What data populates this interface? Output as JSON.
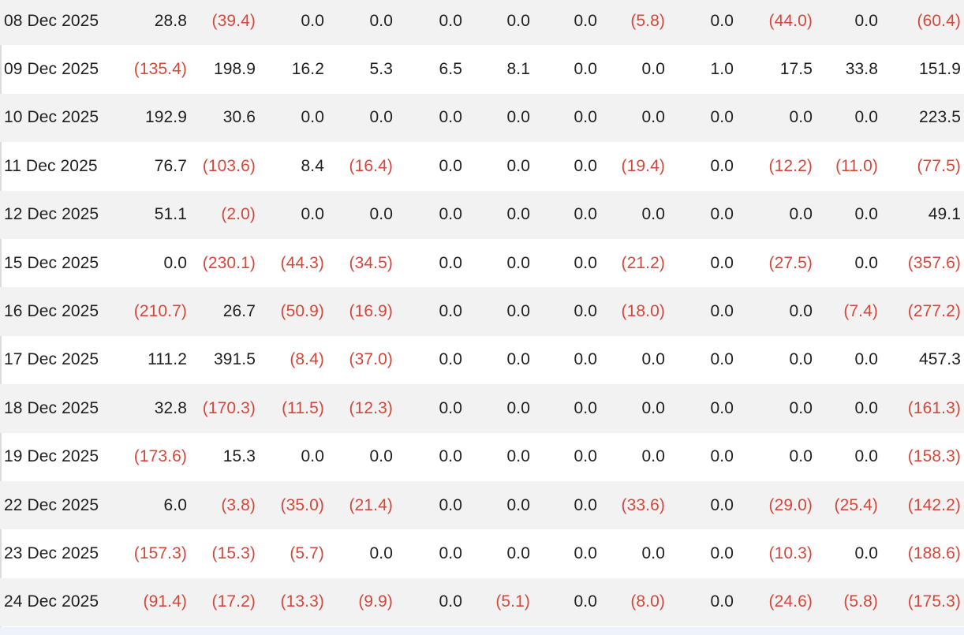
{
  "colors": {
    "negative": "#d4483c",
    "positive": "#1f1f1f",
    "row_alt": "#f2f2f2",
    "footer": "#eef2fb"
  },
  "table": {
    "rows": [
      {
        "date": "08 Dec 2025",
        "values": [
          "28.8",
          "(39.4)",
          "0.0",
          "0.0",
          "0.0",
          "0.0",
          "0.0",
          "(5.8)",
          "0.0",
          "(44.0)",
          "0.0",
          "(60.4)"
        ]
      },
      {
        "date": "09 Dec 2025",
        "values": [
          "(135.4)",
          "198.9",
          "16.2",
          "5.3",
          "6.5",
          "8.1",
          "0.0",
          "0.0",
          "1.0",
          "17.5",
          "33.8",
          "151.9"
        ]
      },
      {
        "date": "10 Dec 2025",
        "values": [
          "192.9",
          "30.6",
          "0.0",
          "0.0",
          "0.0",
          "0.0",
          "0.0",
          "0.0",
          "0.0",
          "0.0",
          "0.0",
          "223.5"
        ]
      },
      {
        "date": "11 Dec 2025",
        "values": [
          "76.7",
          "(103.6)",
          "8.4",
          "(16.4)",
          "0.0",
          "0.0",
          "0.0",
          "(19.4)",
          "0.0",
          "(12.2)",
          "(11.0)",
          "(77.5)"
        ]
      },
      {
        "date": "12 Dec 2025",
        "values": [
          "51.1",
          "(2.0)",
          "0.0",
          "0.0",
          "0.0",
          "0.0",
          "0.0",
          "0.0",
          "0.0",
          "0.0",
          "0.0",
          "49.1"
        ]
      },
      {
        "date": "15 Dec 2025",
        "values": [
          "0.0",
          "(230.1)",
          "(44.3)",
          "(34.5)",
          "0.0",
          "0.0",
          "0.0",
          "(21.2)",
          "0.0",
          "(27.5)",
          "0.0",
          "(357.6)"
        ]
      },
      {
        "date": "16 Dec 2025",
        "values": [
          "(210.7)",
          "26.7",
          "(50.9)",
          "(16.9)",
          "0.0",
          "0.0",
          "0.0",
          "(18.0)",
          "0.0",
          "0.0",
          "(7.4)",
          "(277.2)"
        ]
      },
      {
        "date": "17 Dec 2025",
        "values": [
          "111.2",
          "391.5",
          "(8.4)",
          "(37.0)",
          "0.0",
          "0.0",
          "0.0",
          "0.0",
          "0.0",
          "0.0",
          "0.0",
          "457.3"
        ]
      },
      {
        "date": "18 Dec 2025",
        "values": [
          "32.8",
          "(170.3)",
          "(11.5)",
          "(12.3)",
          "0.0",
          "0.0",
          "0.0",
          "0.0",
          "0.0",
          "0.0",
          "0.0",
          "(161.3)"
        ]
      },
      {
        "date": "19 Dec 2025",
        "values": [
          "(173.6)",
          "15.3",
          "0.0",
          "0.0",
          "0.0",
          "0.0",
          "0.0",
          "0.0",
          "0.0",
          "0.0",
          "0.0",
          "(158.3)"
        ]
      },
      {
        "date": "22 Dec 2025",
        "values": [
          "6.0",
          "(3.8)",
          "(35.0)",
          "(21.4)",
          "0.0",
          "0.0",
          "0.0",
          "(33.6)",
          "0.0",
          "(29.0)",
          "(25.4)",
          "(142.2)"
        ]
      },
      {
        "date": "23 Dec 2025",
        "values": [
          "(157.3)",
          "(15.3)",
          "(5.7)",
          "0.0",
          "0.0",
          "0.0",
          "0.0",
          "0.0",
          "0.0",
          "(10.3)",
          "0.0",
          "(188.6)"
        ]
      },
      {
        "date": "24 Dec 2025",
        "values": [
          "(91.4)",
          "(17.2)",
          "(13.3)",
          "(9.9)",
          "0.0",
          "(5.1)",
          "0.0",
          "(8.0)",
          "0.0",
          "(24.6)",
          "(5.8)",
          "(175.3)"
        ]
      }
    ]
  }
}
